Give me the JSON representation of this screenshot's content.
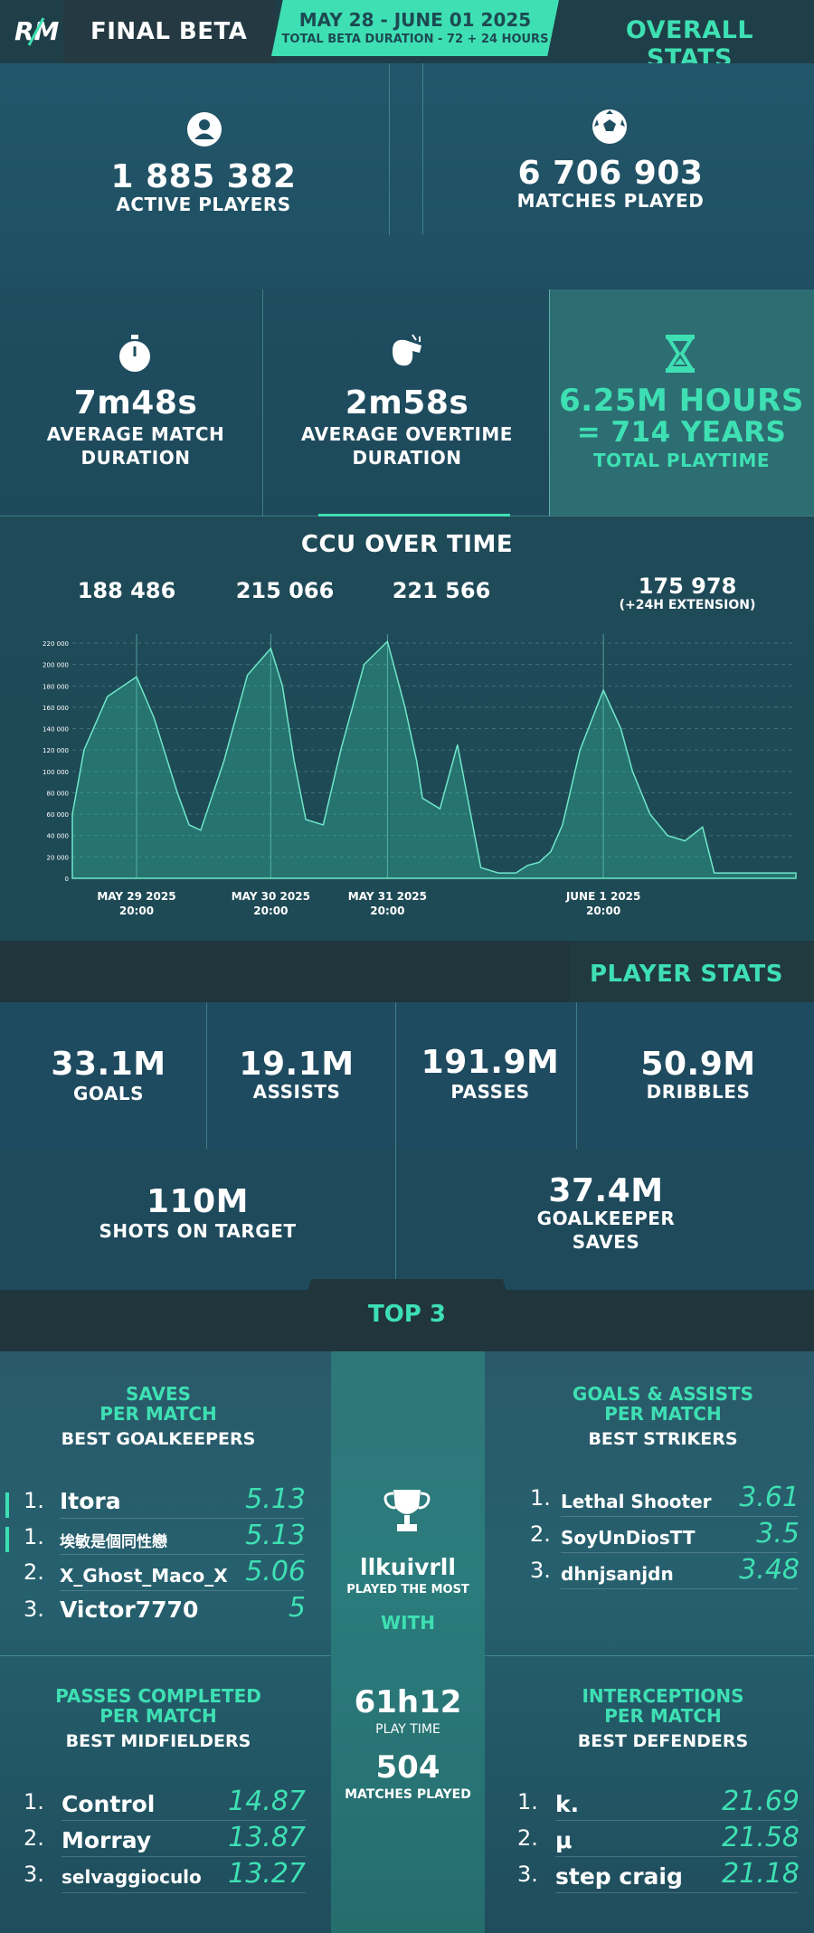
{
  "header": {
    "logo_text": "RM",
    "title": "FINAL BETA",
    "dates": "MAY 28 - JUNE 01 2025",
    "duration": "TOTAL BETA DURATION - 72 + 24 HOURS",
    "section": "OVERALL STATS"
  },
  "overall": {
    "active_players": {
      "value": "1 885 382",
      "label": "ACTIVE PLAYERS",
      "icon": "user-icon"
    },
    "matches_played": {
      "value": "6 706 903",
      "label": "MATCHES PLAYED",
      "icon": "soccer-ball-icon"
    },
    "avg_match": {
      "value": "7m48s",
      "label1": "AVERAGE MATCH",
      "label2": "DURATION",
      "icon": "stopwatch-icon"
    },
    "avg_overtime": {
      "value": "2m58s",
      "label1": "AVERAGE OVERTIME",
      "label2": "DURATION",
      "icon": "whistle-icon"
    },
    "playtime": {
      "value": "6.25M HOURS",
      "equiv": "= 714 YEARS",
      "label": "TOTAL PLAYTIME",
      "icon": "hourglass-icon"
    }
  },
  "ccu": {
    "title": "CCU OVER TIME",
    "peaks": [
      {
        "value": "188 486"
      },
      {
        "value": "215 066"
      },
      {
        "value": "221 566"
      },
      {
        "value": "175 978",
        "note": "(+24H EXTENSION)"
      }
    ],
    "y_ticks": [
      "220 000",
      "200 000",
      "180 000",
      "160 000",
      "140 000",
      "120 000",
      "100 000",
      "80 000",
      "60 000",
      "40 000",
      "20 000",
      "0"
    ],
    "x_labels": [
      {
        "date": "MAY 29 2025",
        "time": "20:00"
      },
      {
        "date": "MAY 30 2025",
        "time": "20:00"
      },
      {
        "date": "MAY 31 2025",
        "time": "20:00"
      },
      {
        "date": "JUNE 1 2025",
        "time": "20:00"
      }
    ]
  },
  "chart_data": {
    "type": "area",
    "title": "CCU OVER TIME",
    "ylim": [
      0,
      220000
    ],
    "y_ticks": [
      0,
      20000,
      40000,
      60000,
      80000,
      100000,
      120000,
      140000,
      160000,
      180000,
      200000,
      220000
    ],
    "x_labels": [
      "MAY 29 2025 20:00",
      "MAY 30 2025 20:00",
      "MAY 31 2025 20:00",
      "JUNE 1 2025 20:00"
    ],
    "x": [
      0,
      0.1,
      0.3,
      0.55,
      0.7,
      0.9,
      1.0,
      1.1,
      1.3,
      1.5,
      1.7,
      1.8,
      1.9,
      2.0,
      2.15,
      2.3,
      2.5,
      2.7,
      2.85,
      2.95,
      3.0,
      3.15,
      3.3,
      3.5,
      3.65,
      3.8,
      3.9,
      4.0,
      4.1,
      4.2,
      4.35,
      4.55,
      4.7,
      4.8,
      4.95,
      5.1,
      5.25,
      5.4,
      5.5,
      5.6,
      5.7,
      5.8,
      6.0,
      6.2
    ],
    "values": [
      60000,
      120000,
      170000,
      188486,
      150000,
      80000,
      50000,
      45000,
      110000,
      190000,
      215066,
      180000,
      110000,
      55000,
      50000,
      120000,
      200000,
      221566,
      160000,
      110000,
      75000,
      65000,
      125000,
      10000,
      5000,
      5000,
      12000,
      15000,
      25000,
      50000,
      120000,
      175978,
      140000,
      100000,
      60000,
      40000,
      35000,
      48000,
      5000,
      5000,
      5000,
      5000,
      5000,
      5000
    ]
  },
  "player_stats": {
    "title": "PLAYER STATS",
    "goals": {
      "value": "33.1M",
      "label": "GOALS"
    },
    "assists": {
      "value": "19.1M",
      "label": "ASSISTS"
    },
    "passes": {
      "value": "191.9M",
      "label": "PASSES"
    },
    "dribbles": {
      "value": "50.9M",
      "label": "DRIBBLES"
    },
    "shots": {
      "value": "110M",
      "label": "SHOTS ON TARGET"
    },
    "saves": {
      "value": "37.4M",
      "label1": "GOALKEEPER",
      "label2": "SAVES"
    }
  },
  "top3": {
    "title": "TOP 3",
    "saves": {
      "title1": "SAVES",
      "title2": "PER MATCH",
      "subtitle": "BEST GOALKEEPERS",
      "rows": [
        {
          "rank": "1.",
          "name": "Itora",
          "value": "5.13"
        },
        {
          "rank": "1.",
          "name": "埃敏是個同性戀",
          "value": "5.13"
        },
        {
          "rank": "2.",
          "name": "X_Ghost_Maco_X",
          "value": "5.06"
        },
        {
          "rank": "3.",
          "name": "Victor7770",
          "value": "5"
        }
      ]
    },
    "goals_assists": {
      "title1": "GOALS & ASSISTS",
      "title2": "PER MATCH",
      "subtitle": "BEST STRIKERS",
      "rows": [
        {
          "rank": "1.",
          "name": "Lethal Shooter",
          "value": "3.61"
        },
        {
          "rank": "2.",
          "name": "SoyUnDiosTT",
          "value": "3.5"
        },
        {
          "rank": "3.",
          "name": "dhnjsanjdn",
          "value": "3.48"
        }
      ]
    },
    "passes": {
      "title1": "PASSES COMPLETED",
      "title2": "PER MATCH",
      "subtitle": "BEST MIDFIELDERS",
      "rows": [
        {
          "rank": "1.",
          "name": "Control",
          "value": "14.87"
        },
        {
          "rank": "2.",
          "name": "Morray",
          "value": "13.87"
        },
        {
          "rank": "3.",
          "name": "selvaggioculo",
          "value": "13.27"
        }
      ]
    },
    "interceptions": {
      "title1": "INTERCEPTIONS",
      "title2": "PER MATCH",
      "subtitle": "BEST DEFENDERS",
      "rows": [
        {
          "rank": "1.",
          "name": "k.",
          "value": "21.69"
        },
        {
          "rank": "2.",
          "name": "μ",
          "value": "21.58"
        },
        {
          "rank": "3.",
          "name": "step craig",
          "value": "21.18"
        }
      ]
    },
    "most_played": {
      "icon": "trophy-icon",
      "name": "llkuivrll",
      "label": "PLAYED THE MOST",
      "with": "WITH",
      "time": "61h12",
      "time_label": "PLAY TIME",
      "matches": "504",
      "matches_label": "MATCHES PLAYED"
    }
  },
  "colors": {
    "accent": "#3ee0b3",
    "panel": "#1f4b60",
    "header": "#20353c"
  }
}
